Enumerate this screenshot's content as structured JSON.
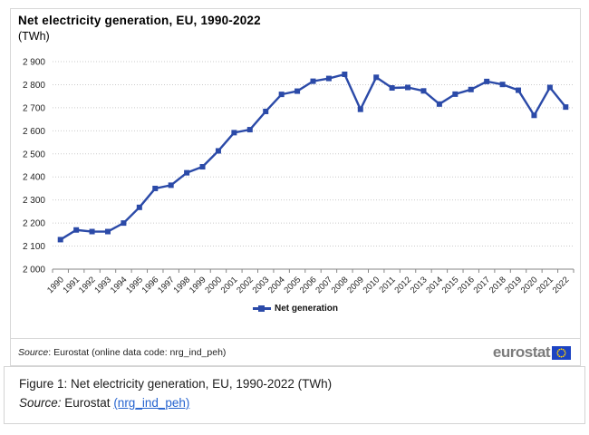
{
  "chart": {
    "title": "Net electricity generation, EU, 1990-2022",
    "subtitle": "(TWh)",
    "legend_label": "Net generation",
    "source_prefix": "Source",
    "source_rest": ": Eurostat (online data code: nrg_ind_peh)"
  },
  "chart_data": {
    "type": "line",
    "title": "Net electricity generation, EU, 1990-2022",
    "unit": "TWh",
    "categories": [
      "1990",
      "1991",
      "1992",
      "1993",
      "1994",
      "1995",
      "1996",
      "1997",
      "1998",
      "1999",
      "2000",
      "2001",
      "2002",
      "2003",
      "2004",
      "2005",
      "2006",
      "2007",
      "2008",
      "2009",
      "2010",
      "2011",
      "2012",
      "2013",
      "2014",
      "2015",
      "2016",
      "2017",
      "2018",
      "2019",
      "2020",
      "2021",
      "2022"
    ],
    "series": [
      {
        "name": "Net generation",
        "color": "#2b4aa8",
        "values": [
          2128,
          2170,
          2163,
          2163,
          2200,
          2268,
          2350,
          2364,
          2418,
          2444,
          2513,
          2592,
          2605,
          2684,
          2758,
          2772,
          2815,
          2827,
          2845,
          2693,
          2832,
          2786,
          2788,
          2773,
          2716,
          2759,
          2779,
          2814,
          2801,
          2776,
          2667,
          2788,
          2703
        ]
      }
    ],
    "ylim": [
      2000,
      2900
    ],
    "ytick_step": 100,
    "grid": "horizontal-dotted",
    "legend_position": "bottom",
    "xlabel": "",
    "ylabel": ""
  },
  "colors": {
    "line": "#2b4aa8",
    "grid": "#cbcbcb",
    "axis": "#858585",
    "panel_border": "#d8d8d8",
    "link": "#2563cf",
    "logo_gray": "#7c7c7c",
    "flag_blue": "#1c43c2",
    "flag_star": "#ffd200"
  },
  "logo": {
    "text": "eurostat"
  },
  "caption": {
    "figure_line": "Figure 1: Net electricity generation, EU, 1990-2022 (TWh)",
    "source_prefix": "Source:",
    "source_mid": " Eurostat ",
    "link_text": "(nrg_ind_peh)"
  }
}
